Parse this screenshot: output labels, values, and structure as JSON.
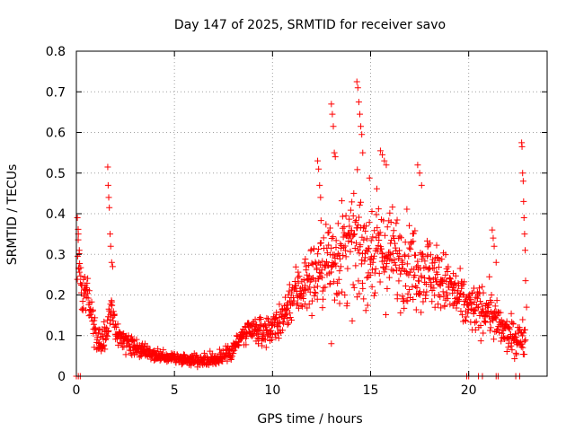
{
  "chart_data": {
    "type": "scatter",
    "title": "Day 147 of 2025, SRMTID for receiver savo",
    "xlabel": "GPS time / hours",
    "ylabel": "SRMTID / TECUs",
    "xlim": [
      0,
      24
    ],
    "ylim": [
      0,
      0.8
    ],
    "x_ticks": [
      0,
      5,
      10,
      15,
      20
    ],
    "x_tick_labels": [
      "0",
      "5",
      "10",
      "15",
      "20"
    ],
    "y_ticks": [
      0,
      0.1,
      0.2,
      0.3,
      0.4,
      0.5,
      0.6,
      0.7,
      0.8
    ],
    "y_tick_labels": [
      "0",
      "0.1",
      "0.2",
      "0.3",
      "0.4",
      "0.5",
      "0.6",
      "0.7",
      "0.8"
    ],
    "grid": true,
    "marker": "plus",
    "color": "#ff0000",
    "series": [
      {
        "name": "SRMTID",
        "trend": [
          [
            0.1,
            0.3
          ],
          [
            0.3,
            0.2
          ],
          [
            0.5,
            0.22
          ],
          [
            0.8,
            0.15
          ],
          [
            1.0,
            0.09
          ],
          [
            1.3,
            0.08
          ],
          [
            1.6,
            0.12
          ],
          [
            1.8,
            0.18
          ],
          [
            2.0,
            0.11
          ],
          [
            2.5,
            0.08
          ],
          [
            3.0,
            0.07
          ],
          [
            3.5,
            0.06
          ],
          [
            4.0,
            0.05
          ],
          [
            5.0,
            0.045
          ],
          [
            6.0,
            0.04
          ],
          [
            7.0,
            0.04
          ],
          [
            7.5,
            0.05
          ],
          [
            8.0,
            0.07
          ],
          [
            8.5,
            0.1
          ],
          [
            9.0,
            0.11
          ],
          [
            9.5,
            0.11
          ],
          [
            10.0,
            0.12
          ],
          [
            10.5,
            0.14
          ],
          [
            11.0,
            0.2
          ],
          [
            11.5,
            0.22
          ],
          [
            12.0,
            0.24
          ],
          [
            12.5,
            0.27
          ],
          [
            13.0,
            0.29
          ],
          [
            13.5,
            0.3
          ],
          [
            14.0,
            0.31
          ],
          [
            14.5,
            0.32
          ],
          [
            15.0,
            0.31
          ],
          [
            15.5,
            0.3
          ],
          [
            16.0,
            0.3
          ],
          [
            16.5,
            0.29
          ],
          [
            17.0,
            0.28
          ],
          [
            17.5,
            0.27
          ],
          [
            18.0,
            0.26
          ],
          [
            18.5,
            0.24
          ],
          [
            19.0,
            0.22
          ],
          [
            19.5,
            0.19
          ],
          [
            20.0,
            0.17
          ],
          [
            20.5,
            0.16
          ],
          [
            21.0,
            0.17
          ],
          [
            21.3,
            0.14
          ],
          [
            21.6,
            0.12
          ],
          [
            22.0,
            0.1
          ],
          [
            22.5,
            0.09
          ],
          [
            22.8,
            0.1
          ]
        ],
        "spread": [
          [
            0,
            0.1
          ],
          [
            1,
            0.06
          ],
          [
            2,
            0.05
          ],
          [
            3,
            0.03
          ],
          [
            5,
            0.02
          ],
          [
            7,
            0.03
          ],
          [
            8.5,
            0.05
          ],
          [
            10,
            0.06
          ],
          [
            11,
            0.1
          ],
          [
            12,
            0.15
          ],
          [
            13,
            0.2
          ],
          [
            14,
            0.23
          ],
          [
            15,
            0.22
          ],
          [
            16,
            0.2
          ],
          [
            17,
            0.18
          ],
          [
            18,
            0.15
          ],
          [
            19,
            0.12
          ],
          [
            20,
            0.1
          ],
          [
            21,
            0.1
          ],
          [
            22,
            0.07
          ],
          [
            23,
            0.07
          ]
        ],
        "spikes": [
          [
            0.05,
            0.39
          ],
          [
            0.1,
            0.35
          ],
          [
            0.15,
            0.31
          ],
          [
            1.6,
            0.515
          ],
          [
            1.62,
            0.47
          ],
          [
            1.65,
            0.44
          ],
          [
            1.68,
            0.415
          ],
          [
            1.72,
            0.35
          ],
          [
            1.75,
            0.32
          ],
          [
            1.8,
            0.28
          ],
          [
            1.85,
            0.27
          ],
          [
            12.3,
            0.53
          ],
          [
            12.35,
            0.51
          ],
          [
            12.4,
            0.47
          ],
          [
            12.45,
            0.44
          ],
          [
            13.0,
            0.67
          ],
          [
            13.05,
            0.645
          ],
          [
            13.1,
            0.615
          ],
          [
            13.15,
            0.55
          ],
          [
            13.2,
            0.54
          ],
          [
            14.3,
            0.725
          ],
          [
            14.35,
            0.71
          ],
          [
            14.4,
            0.675
          ],
          [
            14.45,
            0.645
          ],
          [
            14.5,
            0.615
          ],
          [
            14.55,
            0.595
          ],
          [
            14.6,
            0.55
          ],
          [
            15.5,
            0.555
          ],
          [
            15.6,
            0.545
          ],
          [
            15.7,
            0.53
          ],
          [
            15.8,
            0.52
          ],
          [
            17.4,
            0.52
          ],
          [
            17.5,
            0.5
          ],
          [
            17.6,
            0.47
          ],
          [
            21.2,
            0.36
          ],
          [
            21.25,
            0.34
          ],
          [
            21.3,
            0.32
          ],
          [
            21.4,
            0.28
          ],
          [
            22.7,
            0.575
          ],
          [
            22.72,
            0.565
          ],
          [
            22.75,
            0.5
          ],
          [
            22.78,
            0.48
          ],
          [
            22.8,
            0.43
          ],
          [
            22.82,
            0.39
          ],
          [
            22.85,
            0.35
          ],
          [
            22.88,
            0.31
          ],
          [
            22.9,
            0.235
          ],
          [
            22.95,
            0.17
          ],
          [
            13.0,
            0.08
          ]
        ],
        "gaps": [
          [
            0.0,
            0
          ],
          [
            0.1,
            0
          ],
          [
            0.2,
            0
          ],
          [
            19.9,
            0
          ],
          [
            20.0,
            0
          ],
          [
            20.5,
            0
          ],
          [
            20.7,
            0
          ],
          [
            21.4,
            0
          ],
          [
            21.5,
            0
          ],
          [
            22.4,
            0
          ],
          [
            22.6,
            0
          ]
        ],
        "approx_point_count": 1400
      }
    ]
  }
}
